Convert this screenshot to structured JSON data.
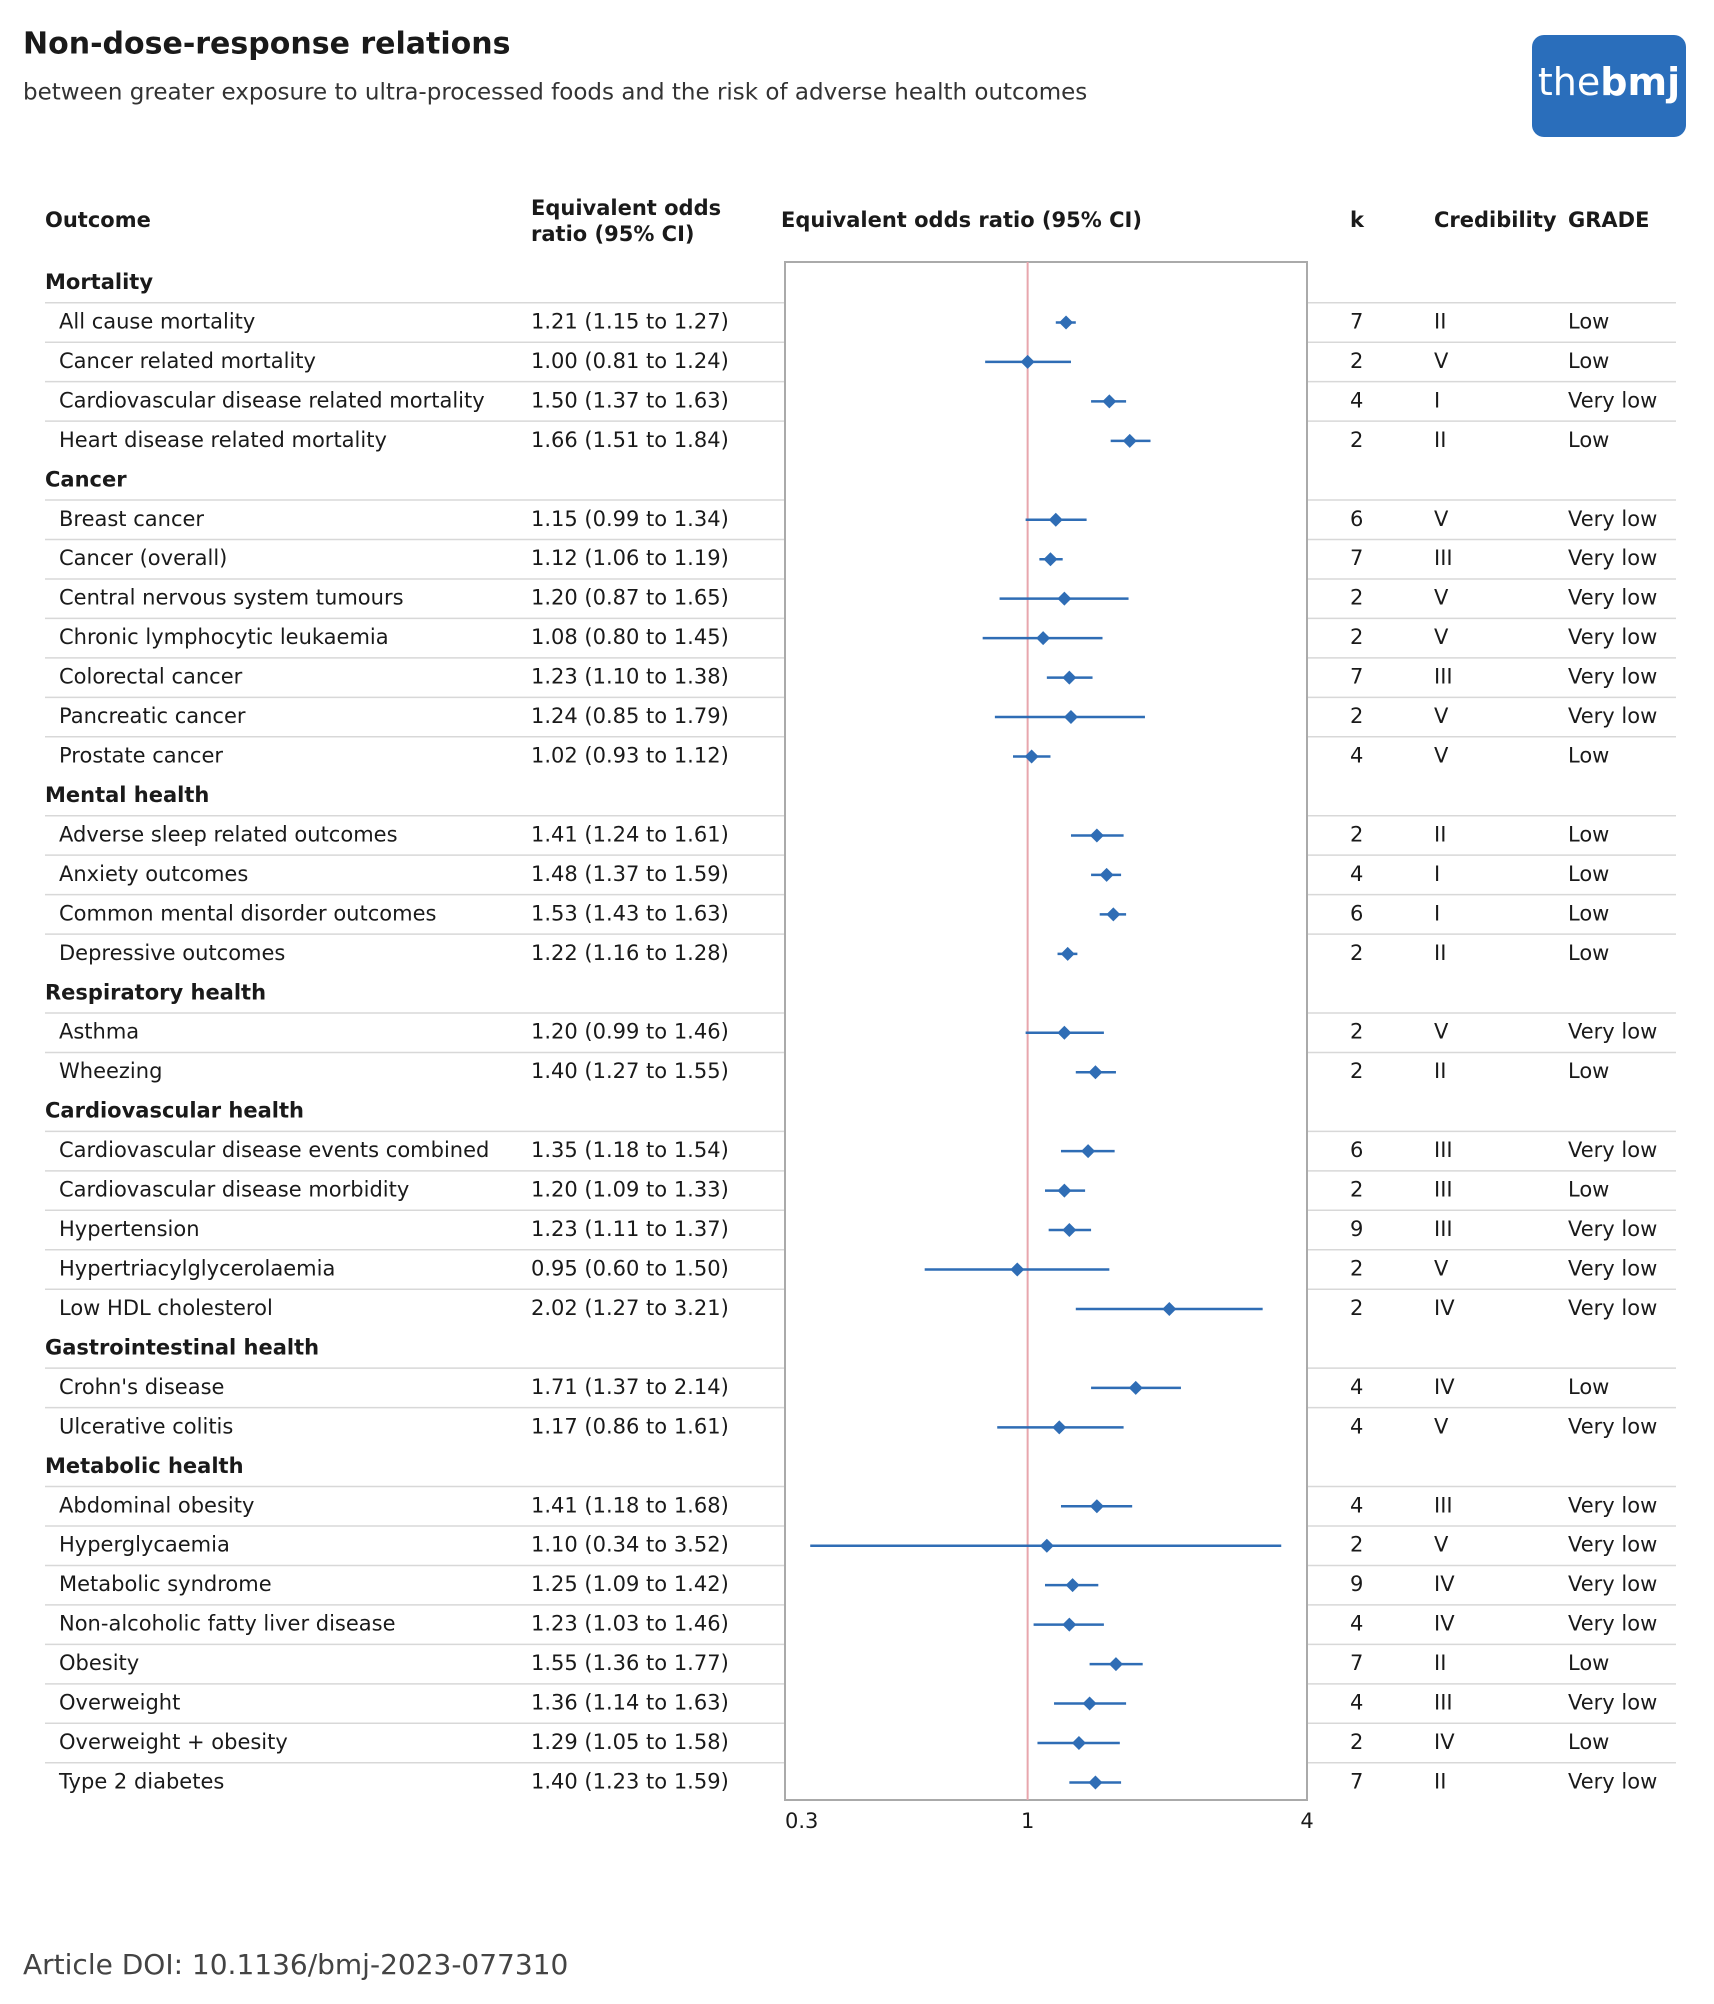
{
  "chart_data": {
    "type": "forest",
    "title": "Non-dose-response relations",
    "subtitle": "between greater exposure to ultra-processed foods and the risk of adverse health outcomes",
    "logo": {
      "light": "the",
      "bold": "bmj"
    },
    "columns": {
      "outcome": "Outcome",
      "or_text": [
        "Equivalent odds",
        "ratio (95% CI)"
      ],
      "plot": "Equivalent odds ratio (95% CI)",
      "k": "k",
      "credibility": "Credibility",
      "grade": "GRADE"
    },
    "xlim": [
      0.3,
      4
    ],
    "xticks": [
      0.3,
      1,
      4
    ],
    "log_x": true,
    "reference_line": 1,
    "color": "#2f6db5",
    "groups": [
      {
        "name": "Mortality",
        "rows": [
          {
            "outcome": "All cause mortality",
            "ci_label": "1.21 (1.15 to 1.27)",
            "estimate": 1.21,
            "lower": 1.15,
            "upper": 1.27,
            "k": 7,
            "credibility": "II",
            "grade": "Low"
          },
          {
            "outcome": "Cancer related mortality",
            "ci_label": "1.00 (0.81 to 1.24)",
            "estimate": 1.0,
            "lower": 0.81,
            "upper": 1.24,
            "k": 2,
            "credibility": "V",
            "grade": "Low"
          },
          {
            "outcome": "Cardiovascular disease related mortality",
            "ci_label": "1.50 (1.37 to 1.63)",
            "estimate": 1.5,
            "lower": 1.37,
            "upper": 1.63,
            "k": 4,
            "credibility": "I",
            "grade": "Very low"
          },
          {
            "outcome": "Heart disease related mortality",
            "ci_label": "1.66 (1.51 to 1.84)",
            "estimate": 1.66,
            "lower": 1.51,
            "upper": 1.84,
            "k": 2,
            "credibility": "II",
            "grade": "Low"
          }
        ]
      },
      {
        "name": "Cancer",
        "rows": [
          {
            "outcome": "Breast cancer",
            "ci_label": "1.15 (0.99 to 1.34)",
            "estimate": 1.15,
            "lower": 0.99,
            "upper": 1.34,
            "k": 6,
            "credibility": "V",
            "grade": "Very low"
          },
          {
            "outcome": "Cancer (overall)",
            "ci_label": "1.12 (1.06 to 1.19)",
            "estimate": 1.12,
            "lower": 1.06,
            "upper": 1.19,
            "k": 7,
            "credibility": "III",
            "grade": "Very low"
          },
          {
            "outcome": "Central nervous system tumours",
            "ci_label": "1.20 (0.87 to 1.65)",
            "estimate": 1.2,
            "lower": 0.87,
            "upper": 1.65,
            "k": 2,
            "credibility": "V",
            "grade": "Very low"
          },
          {
            "outcome": "Chronic lymphocytic leukaemia",
            "ci_label": "1.08 (0.80 to 1.45)",
            "estimate": 1.08,
            "lower": 0.8,
            "upper": 1.45,
            "k": 2,
            "credibility": "V",
            "grade": "Very low"
          },
          {
            "outcome": "Colorectal cancer",
            "ci_label": "1.23 (1.10 to 1.38)",
            "estimate": 1.23,
            "lower": 1.1,
            "upper": 1.38,
            "k": 7,
            "credibility": "III",
            "grade": "Very low"
          },
          {
            "outcome": "Pancreatic cancer",
            "ci_label": "1.24 (0.85 to 1.79)",
            "estimate": 1.24,
            "lower": 0.85,
            "upper": 1.79,
            "k": 2,
            "credibility": "V",
            "grade": "Very low"
          },
          {
            "outcome": "Prostate cancer",
            "ci_label": "1.02 (0.93 to 1.12)",
            "estimate": 1.02,
            "lower": 0.93,
            "upper": 1.12,
            "k": 4,
            "credibility": "V",
            "grade": "Low"
          }
        ]
      },
      {
        "name": "Mental health",
        "rows": [
          {
            "outcome": "Adverse sleep related outcomes",
            "ci_label": "1.41 (1.24 to 1.61)",
            "estimate": 1.41,
            "lower": 1.24,
            "upper": 1.61,
            "k": 2,
            "credibility": "II",
            "grade": "Low"
          },
          {
            "outcome": "Anxiety outcomes",
            "ci_label": "1.48 (1.37 to 1.59)",
            "estimate": 1.48,
            "lower": 1.37,
            "upper": 1.59,
            "k": 4,
            "credibility": "I",
            "grade": "Low"
          },
          {
            "outcome": "Common mental disorder outcomes",
            "ci_label": "1.53 (1.43 to 1.63)",
            "estimate": 1.53,
            "lower": 1.43,
            "upper": 1.63,
            "k": 6,
            "credibility": "I",
            "grade": "Low"
          },
          {
            "outcome": "Depressive outcomes",
            "ci_label": "1.22 (1.16 to 1.28)",
            "estimate": 1.22,
            "lower": 1.16,
            "upper": 1.28,
            "k": 2,
            "credibility": "II",
            "grade": "Low"
          }
        ]
      },
      {
        "name": "Respiratory health",
        "rows": [
          {
            "outcome": "Asthma",
            "ci_label": "1.20 (0.99 to 1.46)",
            "estimate": 1.2,
            "lower": 0.99,
            "upper": 1.46,
            "k": 2,
            "credibility": "V",
            "grade": "Very low"
          },
          {
            "outcome": "Wheezing",
            "ci_label": "1.40 (1.27 to 1.55)",
            "estimate": 1.4,
            "lower": 1.27,
            "upper": 1.55,
            "k": 2,
            "credibility": "II",
            "grade": "Low"
          }
        ]
      },
      {
        "name": "Cardiovascular health",
        "rows": [
          {
            "outcome": "Cardiovascular disease events combined",
            "ci_label": "1.35 (1.18 to 1.54)",
            "estimate": 1.35,
            "lower": 1.18,
            "upper": 1.54,
            "k": 6,
            "credibility": "III",
            "grade": "Very low"
          },
          {
            "outcome": "Cardiovascular disease morbidity",
            "ci_label": "1.20 (1.09 to 1.33)",
            "estimate": 1.2,
            "lower": 1.09,
            "upper": 1.33,
            "k": 2,
            "credibility": "III",
            "grade": "Low"
          },
          {
            "outcome": "Hypertension",
            "ci_label": "1.23 (1.11 to 1.37)",
            "estimate": 1.23,
            "lower": 1.11,
            "upper": 1.37,
            "k": 9,
            "credibility": "III",
            "grade": "Very low"
          },
          {
            "outcome": "Hypertriacylglycerolaemia",
            "ci_label": "0.95 (0.60 to 1.50)",
            "estimate": 0.95,
            "lower": 0.6,
            "upper": 1.5,
            "k": 2,
            "credibility": "V",
            "grade": "Very low"
          },
          {
            "outcome": "Low HDL cholesterol",
            "ci_label": "2.02 (1.27 to 3.21)",
            "estimate": 2.02,
            "lower": 1.27,
            "upper": 3.21,
            "k": 2,
            "credibility": "IV",
            "grade": "Very low"
          }
        ]
      },
      {
        "name": "Gastrointestinal health",
        "rows": [
          {
            "outcome": "Crohn's disease",
            "ci_label": "1.71 (1.37 to 2.14)",
            "estimate": 1.71,
            "lower": 1.37,
            "upper": 2.14,
            "k": 4,
            "credibility": "IV",
            "grade": "Low"
          },
          {
            "outcome": "Ulcerative colitis",
            "ci_label": "1.17 (0.86 to 1.61)",
            "estimate": 1.17,
            "lower": 0.86,
            "upper": 1.61,
            "k": 4,
            "credibility": "V",
            "grade": "Very low"
          }
        ]
      },
      {
        "name": "Metabolic health",
        "rows": [
          {
            "outcome": "Abdominal obesity",
            "ci_label": "1.41 (1.18 to 1.68)",
            "estimate": 1.41,
            "lower": 1.18,
            "upper": 1.68,
            "k": 4,
            "credibility": "III",
            "grade": "Very low"
          },
          {
            "outcome": "Hyperglycaemia",
            "ci_label": "1.10 (0.34 to 3.52)",
            "estimate": 1.1,
            "lower": 0.34,
            "upper": 3.52,
            "k": 2,
            "credibility": "V",
            "grade": "Very low"
          },
          {
            "outcome": "Metabolic syndrome",
            "ci_label": "1.25 (1.09 to 1.42)",
            "estimate": 1.25,
            "lower": 1.09,
            "upper": 1.42,
            "k": 9,
            "credibility": "IV",
            "grade": "Very low"
          },
          {
            "outcome": "Non-alcoholic fatty liver disease",
            "ci_label": "1.23 (1.03 to 1.46)",
            "estimate": 1.23,
            "lower": 1.03,
            "upper": 1.46,
            "k": 4,
            "credibility": "IV",
            "grade": "Very low"
          },
          {
            "outcome": "Obesity",
            "ci_label": "1.55 (1.36 to 1.77)",
            "estimate": 1.55,
            "lower": 1.36,
            "upper": 1.77,
            "k": 7,
            "credibility": "II",
            "grade": "Low"
          },
          {
            "outcome": "Overweight",
            "ci_label": "1.36 (1.14 to 1.63)",
            "estimate": 1.36,
            "lower": 1.14,
            "upper": 1.63,
            "k": 4,
            "credibility": "III",
            "grade": "Very low"
          },
          {
            "outcome": "Overweight + obesity",
            "ci_label": "1.29 (1.05 to 1.58)",
            "estimate": 1.29,
            "lower": 1.05,
            "upper": 1.58,
            "k": 2,
            "credibility": "IV",
            "grade": "Low"
          },
          {
            "outcome": "Type 2 diabetes",
            "ci_label": "1.40 (1.23 to 1.59)",
            "estimate": 1.4,
            "lower": 1.23,
            "upper": 1.59,
            "k": 7,
            "credibility": "II",
            "grade": "Very low"
          }
        ]
      }
    ],
    "footer": "Article DOI: 10.1136/bmj-2023-077310"
  }
}
